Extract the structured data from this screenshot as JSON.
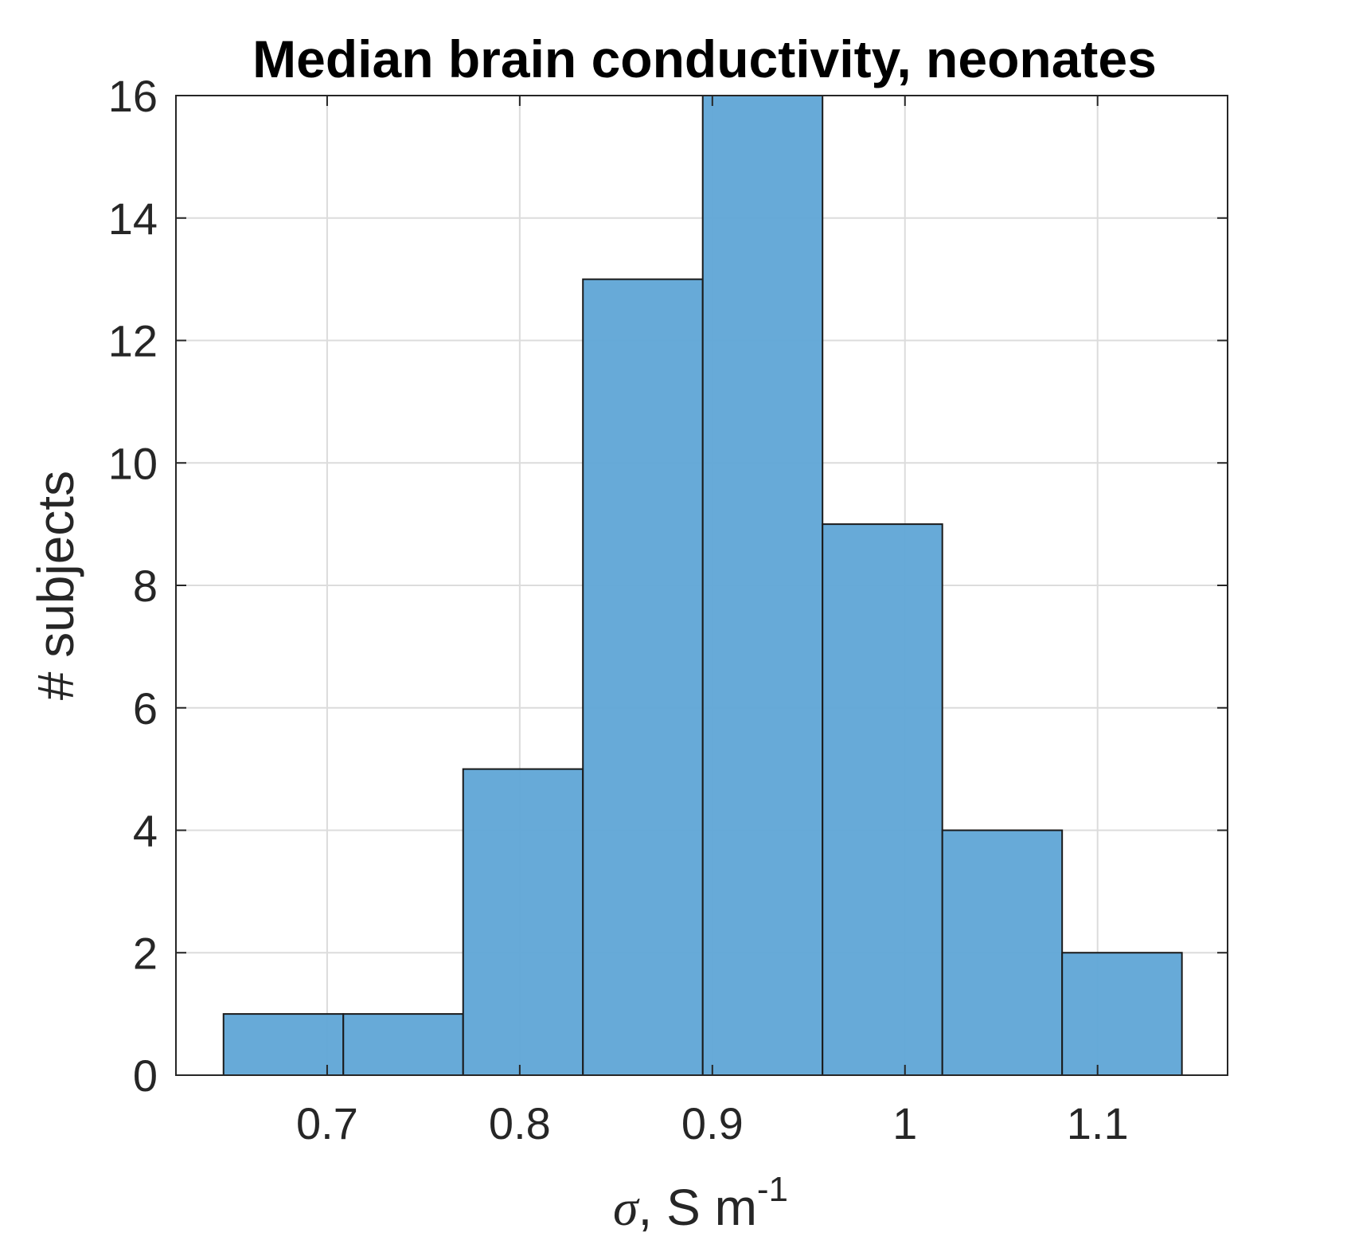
{
  "chart_data": {
    "type": "bar",
    "title": "Median brain conductivity, neonates",
    "xlabel": {
      "symbol": "σ",
      "text": ", S m",
      "superscript": "-1"
    },
    "ylabel": "# subjects",
    "bin_width": 0.0622,
    "bins": [
      {
        "x0": 0.6462,
        "x1": 0.7084,
        "count": 1
      },
      {
        "x0": 0.7084,
        "x1": 0.7706,
        "count": 1
      },
      {
        "x0": 0.7706,
        "x1": 0.8328,
        "count": 5
      },
      {
        "x0": 0.8328,
        "x1": 0.895,
        "count": 13
      },
      {
        "x0": 0.895,
        "x1": 0.9572,
        "count": 16
      },
      {
        "x0": 0.9572,
        "x1": 1.0194,
        "count": 9
      },
      {
        "x0": 1.0194,
        "x1": 1.0816,
        "count": 4
      },
      {
        "x0": 1.0816,
        "x1": 1.1438,
        "count": 2
      }
    ],
    "xlim": [
      0.6215,
      1.1675
    ],
    "ylim": [
      0,
      16
    ],
    "x_ticks": [
      0.7,
      0.8,
      0.9,
      1.0,
      1.1
    ],
    "x_tick_labels": [
      "0.7",
      "0.8",
      "0.9",
      "1",
      "1.1"
    ],
    "y_ticks": [
      0,
      2,
      4,
      6,
      8,
      10,
      12,
      14,
      16
    ],
    "y_tick_labels": [
      "0",
      "2",
      "4",
      "6",
      "8",
      "10",
      "12",
      "14",
      "16"
    ],
    "grid": true,
    "bar_color": "#5fa5d6",
    "bar_edge_color": "#1a1a1a",
    "grid_color": "#dcdcdc",
    "axis_color": "#262626"
  }
}
